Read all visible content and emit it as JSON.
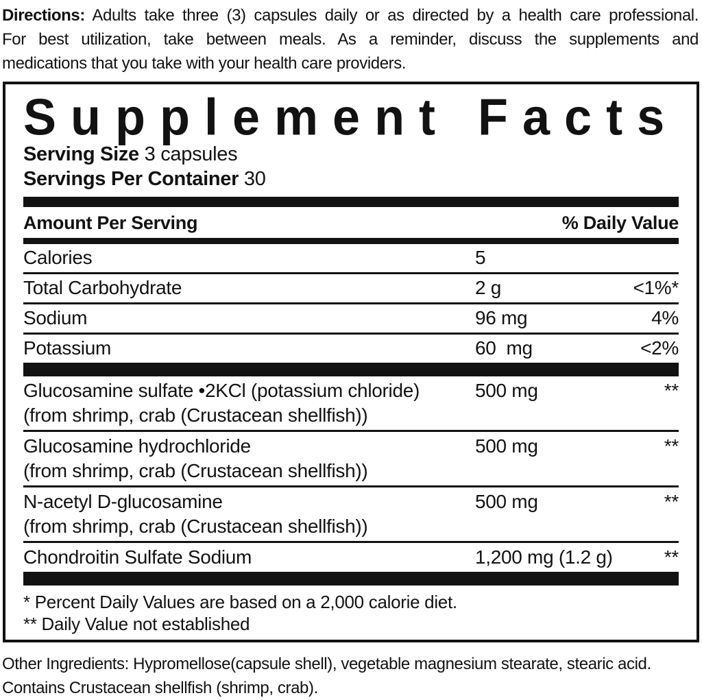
{
  "directions": {
    "label": "Directions:",
    "line1_rest": " Adults take three (3) capsules daily or as directed by a health care professional.",
    "line2": "For best utilization, take between meals. As a reminder, discuss the supplements and",
    "line3": "medications that you take with your health care providers."
  },
  "panel": {
    "title": "Supplement Facts",
    "serving_size_label": "Serving Size",
    "serving_size_value": "3 capsules",
    "servings_per_container_label": "Servings Per Container",
    "servings_per_container_value": "30",
    "header": {
      "amount": "Amount Per Serving",
      "daily_value": "% Daily Value"
    },
    "nutrients": [
      {
        "name": "Calories",
        "amount": "5",
        "dv": ""
      },
      {
        "name": "Total Carbohydrate",
        "amount": "2 g",
        "dv": "<1%*"
      },
      {
        "name": "Sodium",
        "amount": "96 mg",
        "dv": "4%"
      },
      {
        "name": "Potassium",
        "amount": "60  mg",
        "dv": "<2%"
      }
    ],
    "ingredients": [
      {
        "name": "Glucosamine sulfate •2KCl (potassium chloride)",
        "source": "(from shrimp, crab (Crustacean shellfish))",
        "amount": "500 mg",
        "dv": "**"
      },
      {
        "name": "Glucosamine hydrochloride",
        "source": "(from shrimp, crab (Crustacean shellfish))",
        "amount": "500 mg",
        "dv": "**"
      },
      {
        "name": "N-acetyl D-glucosamine",
        "source": "(from shrimp, crab (Crustacean shellfish))",
        "amount": "500 mg",
        "dv": "**"
      },
      {
        "name": "Chondroitin Sulfate Sodium",
        "amount": "1,200 mg (1.2 g)",
        "dv": "**"
      }
    ],
    "footnotes": {
      "dv_note": "* Percent Daily Values are based on a 2,000 calorie diet.",
      "not_established_note": "** Daily Value not established"
    }
  },
  "bottom": {
    "other_ingredients": "Other Ingredients: Hypromellose(capsule shell), vegetable magnesium stearate, stearic acid.",
    "contains": "Contains Crustacean shellfish (shrimp, crab)."
  },
  "colors": {
    "ink": "#121212",
    "background": "#ffffff"
  }
}
